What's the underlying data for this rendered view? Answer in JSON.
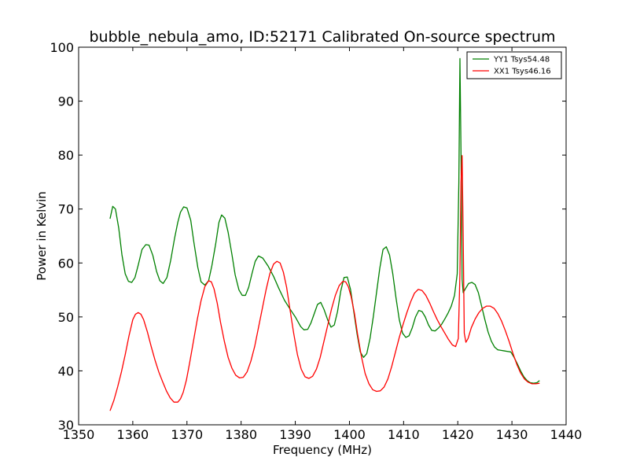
{
  "chart_data": {
    "type": "line",
    "title": "bubble_nebula_amo, ID:52171 Calibrated On-source spectrum",
    "xlabel": "Frequency (MHz)",
    "ylabel": "Power in Kelvin",
    "xlim": [
      1350,
      1440
    ],
    "ylim": [
      30,
      100
    ],
    "xticks": [
      1350,
      1360,
      1370,
      1380,
      1390,
      1400,
      1410,
      1420,
      1430,
      1440
    ],
    "yticks": [
      30,
      40,
      50,
      60,
      70,
      80,
      90,
      100
    ],
    "grid": false,
    "legend_position": "top-right",
    "series": [
      {
        "name": "YY1 Tsys54.48",
        "color": "#008000",
        "x": [
          1355.8,
          1356.3,
          1356.8,
          1357.4,
          1358.0,
          1358.6,
          1359.2,
          1359.8,
          1360.4,
          1361.0,
          1361.7,
          1362.4,
          1363.0,
          1363.7,
          1364.4,
          1365.0,
          1365.6,
          1366.3,
          1367.0,
          1367.7,
          1368.3,
          1368.8,
          1369.4,
          1370.0,
          1370.7,
          1371.3,
          1372.0,
          1372.6,
          1373.3,
          1374.0,
          1374.6,
          1375.3,
          1375.9,
          1376.4,
          1377.0,
          1377.6,
          1378.3,
          1378.9,
          1379.6,
          1380.2,
          1380.8,
          1381.4,
          1382.0,
          1382.6,
          1383.2,
          1384.0,
          1385.0,
          1386.0,
          1387.0,
          1388.0,
          1389.0,
          1390.0,
          1391.0,
          1391.6,
          1392.3,
          1392.9,
          1393.5,
          1394.1,
          1394.7,
          1395.3,
          1396.0,
          1396.6,
          1397.2,
          1397.8,
          1398.4,
          1399.0,
          1399.6,
          1400.2,
          1400.8,
          1401.4,
          1402.0,
          1402.6,
          1403.2,
          1403.8,
          1404.4,
          1405.0,
          1405.6,
          1406.2,
          1406.8,
          1407.4,
          1408.0,
          1408.6,
          1409.2,
          1409.8,
          1410.4,
          1411.0,
          1411.6,
          1412.2,
          1412.8,
          1413.4,
          1414.0,
          1414.6,
          1415.2,
          1415.8,
          1416.4,
          1417.0,
          1417.6,
          1418.2,
          1418.8,
          1419.4,
          1419.9,
          1420.2,
          1420.4,
          1420.6,
          1420.8,
          1421.0,
          1421.4,
          1422.0,
          1422.6,
          1423.2,
          1423.8,
          1424.4,
          1425.0,
          1425.6,
          1426.2,
          1426.8,
          1427.4,
          1428.0,
          1428.6,
          1429.2,
          1429.8,
          1430.4,
          1431.0,
          1431.6,
          1432.2,
          1432.8,
          1433.4,
          1434.0,
          1434.6,
          1435.1
        ],
        "y": [
          68.2,
          70.5,
          70.0,
          66.5,
          61.5,
          58.0,
          56.6,
          56.4,
          57.3,
          59.6,
          62.5,
          63.4,
          63.3,
          61.4,
          58.4,
          56.7,
          56.2,
          57.3,
          60.5,
          64.5,
          67.5,
          69.4,
          70.4,
          70.2,
          67.9,
          63.7,
          59.2,
          56.5,
          55.9,
          56.7,
          59.5,
          63.5,
          67.5,
          68.9,
          68.3,
          65.7,
          61.6,
          57.8,
          55.0,
          54.0,
          54.0,
          55.5,
          58.0,
          60.3,
          61.3,
          60.9,
          59.4,
          57.5,
          55.2,
          53.1,
          51.5,
          50.0,
          48.2,
          47.6,
          47.7,
          48.9,
          50.6,
          52.3,
          52.7,
          51.4,
          49.4,
          48.1,
          48.5,
          51.0,
          54.8,
          57.3,
          57.4,
          55.1,
          51.0,
          46.9,
          43.5,
          42.5,
          43.2,
          46.0,
          50.0,
          54.5,
          59.0,
          62.5,
          63.0,
          61.5,
          58.0,
          53.5,
          49.5,
          47.0,
          46.2,
          46.5,
          48.0,
          50.0,
          51.2,
          51.0,
          50.0,
          48.5,
          47.5,
          47.4,
          47.9,
          48.6,
          49.6,
          50.7,
          52.0,
          54.0,
          58.0,
          75.0,
          97.9,
          80.0,
          57.0,
          54.5,
          55.2,
          56.2,
          56.4,
          56.0,
          54.5,
          52.0,
          49.5,
          47.2,
          45.5,
          44.4,
          43.9,
          43.8,
          43.7,
          43.6,
          43.5,
          42.5,
          41.3,
          40.0,
          38.9,
          38.2,
          37.8,
          37.7,
          37.8,
          38.2
        ]
      },
      {
        "name": "XX1 Tsys46.16",
        "color": "#ff0000",
        "x": [
          1355.8,
          1356.5,
          1357.2,
          1357.9,
          1358.6,
          1359.3,
          1360.0,
          1360.5,
          1361.0,
          1361.5,
          1362.0,
          1362.7,
          1363.4,
          1364.1,
          1364.8,
          1365.5,
          1366.2,
          1366.9,
          1367.6,
          1368.3,
          1368.8,
          1369.3,
          1369.9,
          1370.5,
          1371.2,
          1371.9,
          1372.6,
          1373.3,
          1374.0,
          1374.5,
          1375.0,
          1375.6,
          1376.2,
          1376.9,
          1377.6,
          1378.3,
          1379.0,
          1379.7,
          1380.4,
          1381.1,
          1381.8,
          1382.5,
          1383.2,
          1383.9,
          1384.6,
          1385.3,
          1386.0,
          1386.6,
          1387.2,
          1387.8,
          1388.4,
          1389.0,
          1389.7,
          1390.4,
          1391.1,
          1391.8,
          1392.5,
          1393.2,
          1393.9,
          1394.6,
          1395.3,
          1396.0,
          1396.7,
          1397.4,
          1398.1,
          1398.8,
          1399.3,
          1399.8,
          1400.3,
          1400.9,
          1401.5,
          1402.2,
          1402.9,
          1403.6,
          1404.3,
          1405.0,
          1405.7,
          1406.4,
          1407.1,
          1407.8,
          1408.5,
          1409.2,
          1409.9,
          1410.6,
          1411.3,
          1412.0,
          1412.7,
          1413.4,
          1414.1,
          1414.8,
          1415.5,
          1416.2,
          1416.9,
          1417.6,
          1418.3,
          1419.0,
          1419.6,
          1420.1,
          1420.4,
          1420.6,
          1420.8,
          1421.0,
          1421.2,
          1421.5,
          1421.9,
          1422.5,
          1423.2,
          1423.9,
          1424.6,
          1425.3,
          1426.0,
          1426.7,
          1427.4,
          1428.1,
          1428.8,
          1429.5,
          1430.2,
          1430.9,
          1431.6,
          1432.3,
          1433.0,
          1433.7,
          1434.4,
          1435.1
        ],
        "y": [
          32.6,
          34.5,
          37.0,
          39.8,
          43.0,
          46.5,
          49.5,
          50.5,
          50.8,
          50.5,
          49.5,
          47.2,
          44.5,
          42.0,
          39.8,
          38.0,
          36.3,
          35.0,
          34.2,
          34.2,
          34.8,
          36.0,
          38.3,
          41.5,
          45.5,
          49.5,
          53.0,
          55.6,
          56.7,
          56.5,
          55.2,
          52.5,
          49.0,
          45.5,
          42.5,
          40.5,
          39.2,
          38.7,
          38.8,
          39.8,
          41.8,
          44.5,
          48.0,
          51.5,
          55.0,
          58.0,
          59.8,
          60.3,
          60.0,
          58.3,
          55.5,
          51.5,
          47.0,
          43.0,
          40.3,
          38.9,
          38.6,
          39.0,
          40.3,
          42.5,
          45.5,
          48.5,
          51.5,
          54.0,
          55.8,
          56.6,
          56.5,
          55.6,
          53.8,
          50.8,
          46.8,
          42.7,
          39.5,
          37.6,
          36.5,
          36.2,
          36.3,
          37.0,
          38.5,
          40.8,
          43.5,
          46.2,
          48.6,
          50.8,
          52.8,
          54.4,
          55.1,
          54.9,
          54.0,
          52.6,
          51.0,
          49.5,
          48.2,
          47.0,
          45.8,
          44.8,
          44.5,
          46.0,
          58.0,
          75.0,
          79.9,
          65.0,
          47.0,
          45.3,
          46.0,
          48.0,
          49.6,
          50.8,
          51.6,
          52.0,
          52.0,
          51.6,
          50.6,
          49.2,
          47.4,
          45.4,
          43.2,
          41.2,
          39.6,
          38.5,
          37.9,
          37.6,
          37.6,
          37.7
        ]
      }
    ]
  }
}
